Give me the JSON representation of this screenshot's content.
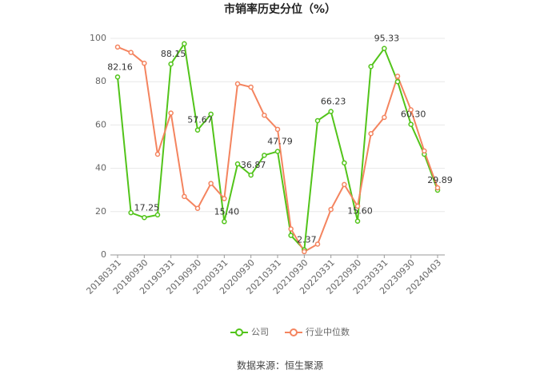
{
  "chart_data": {
    "type": "line",
    "title": "市销率历史分位（%）",
    "categories": [
      "20180331",
      null,
      "20180930",
      null,
      "20190331",
      null,
      "20190930",
      null,
      "20200331",
      null,
      "20200930",
      null,
      "20210331",
      null,
      "20210930",
      null,
      "20220331",
      null,
      "20220930",
      null,
      "20230331",
      null,
      "20230930",
      null,
      "20240403"
    ],
    "series": [
      {
        "name": "公司",
        "color": "#52c41a",
        "values": [
          82.16,
          19.5,
          17.25,
          18.5,
          88.15,
          97.5,
          57.67,
          65,
          15.4,
          42,
          36.87,
          46,
          47.79,
          9,
          2.37,
          62,
          66.23,
          42.5,
          15.6,
          87,
          95.33,
          80,
          60.3,
          46.5,
          29.89
        ],
        "value_labels": [
          "82.16",
          null,
          "17.25",
          null,
          "88.15",
          null,
          "57.67",
          null,
          "15.40",
          null,
          "36.87",
          null,
          "47.79",
          null,
          "2.37",
          null,
          "66.23",
          null,
          "15.60",
          null,
          "95.33",
          null,
          "60.30",
          null,
          "29.89"
        ]
      },
      {
        "name": "行业中位数",
        "color": "#f4845f",
        "values": [
          96,
          93.5,
          88.5,
          46.5,
          65.5,
          27,
          21.5,
          33,
          26,
          79,
          77.5,
          64.5,
          58,
          12,
          1.5,
          5,
          21,
          32.5,
          22.5,
          56,
          63.5,
          82.5,
          67,
          48,
          31
        ]
      }
    ],
    "ylim": [
      0,
      100
    ],
    "yticks": [
      0,
      20,
      40,
      60,
      80,
      100
    ],
    "grid": true,
    "source": "数据来源：恒生聚源"
  }
}
